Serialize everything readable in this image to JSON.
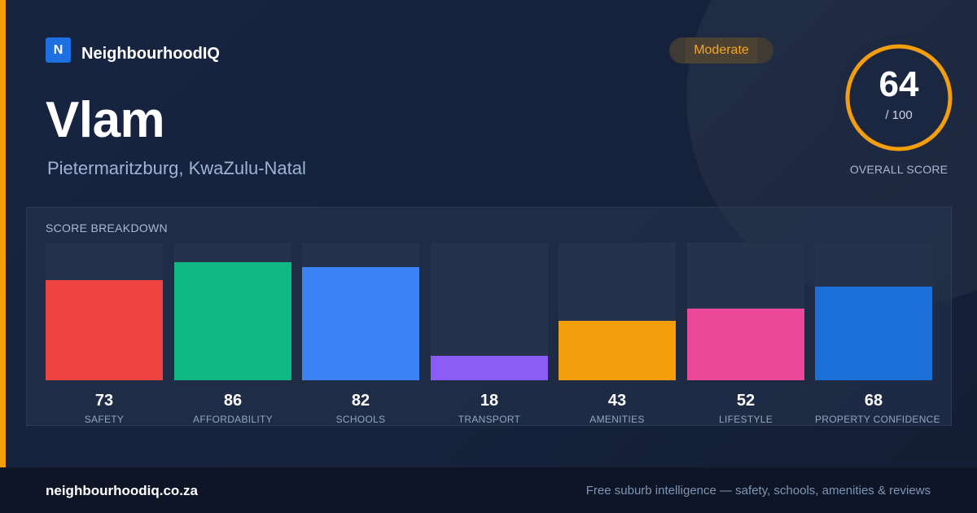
{
  "brand": {
    "logo_letter": "N",
    "name": "NeighbourhoodIQ",
    "color": "#1e6fe0"
  },
  "suburb": {
    "name": "Vlam",
    "location": "Pietermaritzburg, KwaZulu-Natal"
  },
  "rating": {
    "label": "Moderate",
    "color": "#f5a524"
  },
  "overall": {
    "score": "64",
    "max": "/ 100",
    "fraction": 0.64,
    "label": "OVERALL SCORE",
    "ring_color": "#f59e0b"
  },
  "breakdown": {
    "title": "SCORE BREAKDOWN",
    "max": 100,
    "categories": [
      {
        "label": "SAFETY",
        "value": 73,
        "color": "#ef4444"
      },
      {
        "label": "AFFORDABILITY",
        "value": 86,
        "color": "#10b981"
      },
      {
        "label": "SCHOOLS",
        "value": 82,
        "color": "#3b82f6"
      },
      {
        "label": "TRANSPORT",
        "value": 18,
        "color": "#8b5cf6"
      },
      {
        "label": "AMENITIES",
        "value": 43,
        "color": "#f59e0b"
      },
      {
        "label": "LIFESTYLE",
        "value": 52,
        "color": "#ec4899"
      },
      {
        "label": "PROPERTY CONFIDENCE",
        "value": 68,
        "color": "#1d6fd8"
      }
    ]
  },
  "footer": {
    "domain": "neighbourhoodiq.co.za",
    "tagline": "Free suburb intelligence — safety, schools, amenities & reviews"
  }
}
